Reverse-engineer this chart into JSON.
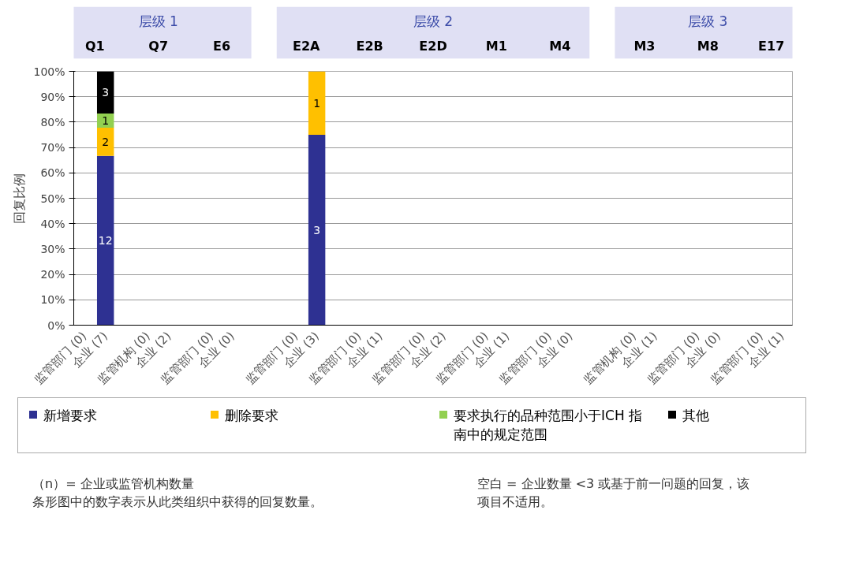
{
  "chart_data": {
    "type": "bar",
    "stacked": true,
    "ylabel": "回复比例",
    "categories": [
      "监管部门 (0)",
      "企业 (7)",
      null,
      "监管机构 (0)",
      "企业 (2)",
      null,
      "监管部门 (0)",
      "企业 (0)",
      null,
      null,
      "监管部门 (0)",
      "企业 (3)",
      null,
      "监管部门 (0)",
      "企业 (1)",
      null,
      "监管部门 (0)",
      "企业 (2)",
      null,
      "监管部门 (0)",
      "企业 (1)",
      null,
      "监管部门 (0)",
      "企业 (0)",
      null,
      null,
      "监管机构 (0)",
      "企业 (1)",
      null,
      "监管部门 (0)",
      "企业 (0)",
      null,
      "监管部门 (0)",
      "企业 (1)"
    ],
    "series": [
      {
        "name": "新增要求",
        "color": "#2e3192",
        "values": [
          null,
          66.7,
          null,
          null,
          null,
          null,
          null,
          null,
          null,
          null,
          null,
          75,
          null,
          null,
          null,
          null,
          null,
          null,
          null,
          null,
          null,
          null,
          null,
          null,
          null,
          null,
          null,
          null,
          null,
          null,
          null,
          null,
          null,
          null
        ]
      },
      {
        "name": "删除要求",
        "color": "#ffc000",
        "values": [
          null,
          11.1,
          null,
          null,
          null,
          null,
          null,
          null,
          null,
          null,
          null,
          25,
          null,
          null,
          null,
          null,
          null,
          null,
          null,
          null,
          null,
          null,
          null,
          null,
          null,
          null,
          null,
          null,
          null,
          null,
          null,
          null,
          null,
          null
        ]
      },
      {
        "name": "要求执行的品种范围小于ICH 指南中的规定范围",
        "color": "#92d050",
        "values": [
          null,
          5.6,
          null,
          null,
          null,
          null,
          null,
          null,
          null,
          null,
          null,
          null,
          null,
          null,
          null,
          null,
          null,
          null,
          null,
          null,
          null,
          null,
          null,
          null,
          null,
          null,
          null,
          null,
          null,
          null,
          null,
          null,
          null,
          null
        ]
      },
      {
        "name": "其他",
        "color": "#000000",
        "values": [
          null,
          16.6,
          null,
          null,
          null,
          null,
          null,
          null,
          null,
          null,
          null,
          null,
          null,
          null,
          null,
          null,
          null,
          null,
          null,
          null,
          null,
          null,
          null,
          null,
          null,
          null,
          null,
          null,
          null,
          null,
          null,
          null,
          null,
          null
        ]
      }
    ],
    "ylim": [
      0,
      100
    ],
    "yticks": [
      {
        "value": 0,
        "label": "0%"
      },
      {
        "value": 10,
        "label": "10%"
      },
      {
        "value": 20,
        "label": "20%"
      },
      {
        "value": 30,
        "label": "30%"
      },
      {
        "value": 40,
        "label": "40%"
      },
      {
        "value": 50,
        "label": "50%"
      },
      {
        "value": 60,
        "label": "60%"
      },
      {
        "value": 70,
        "label": "70%"
      },
      {
        "value": 80,
        "label": "80%"
      },
      {
        "value": 90,
        "label": "90%"
      },
      {
        "value": 100,
        "label": "100%"
      }
    ],
    "grid": "y",
    "legend": "bottom",
    "annotations": [
      "层级 1",
      "Q1",
      "Q7",
      "E6",
      "层级 2",
      "E2A",
      "E2B",
      "E2D",
      "M1",
      "M4",
      "层级 3",
      "M3",
      "M8",
      "E17",
      "12",
      "2",
      "1",
      "3",
      "3",
      "1",
      "（n）= 企业或监管机构数量",
      "条形图中的数字表示从此类组织中获得的回复数量。",
      "空白 = 企业数量 <3 或基于前一问题的回复，该项目不适用。"
    ]
  }
}
